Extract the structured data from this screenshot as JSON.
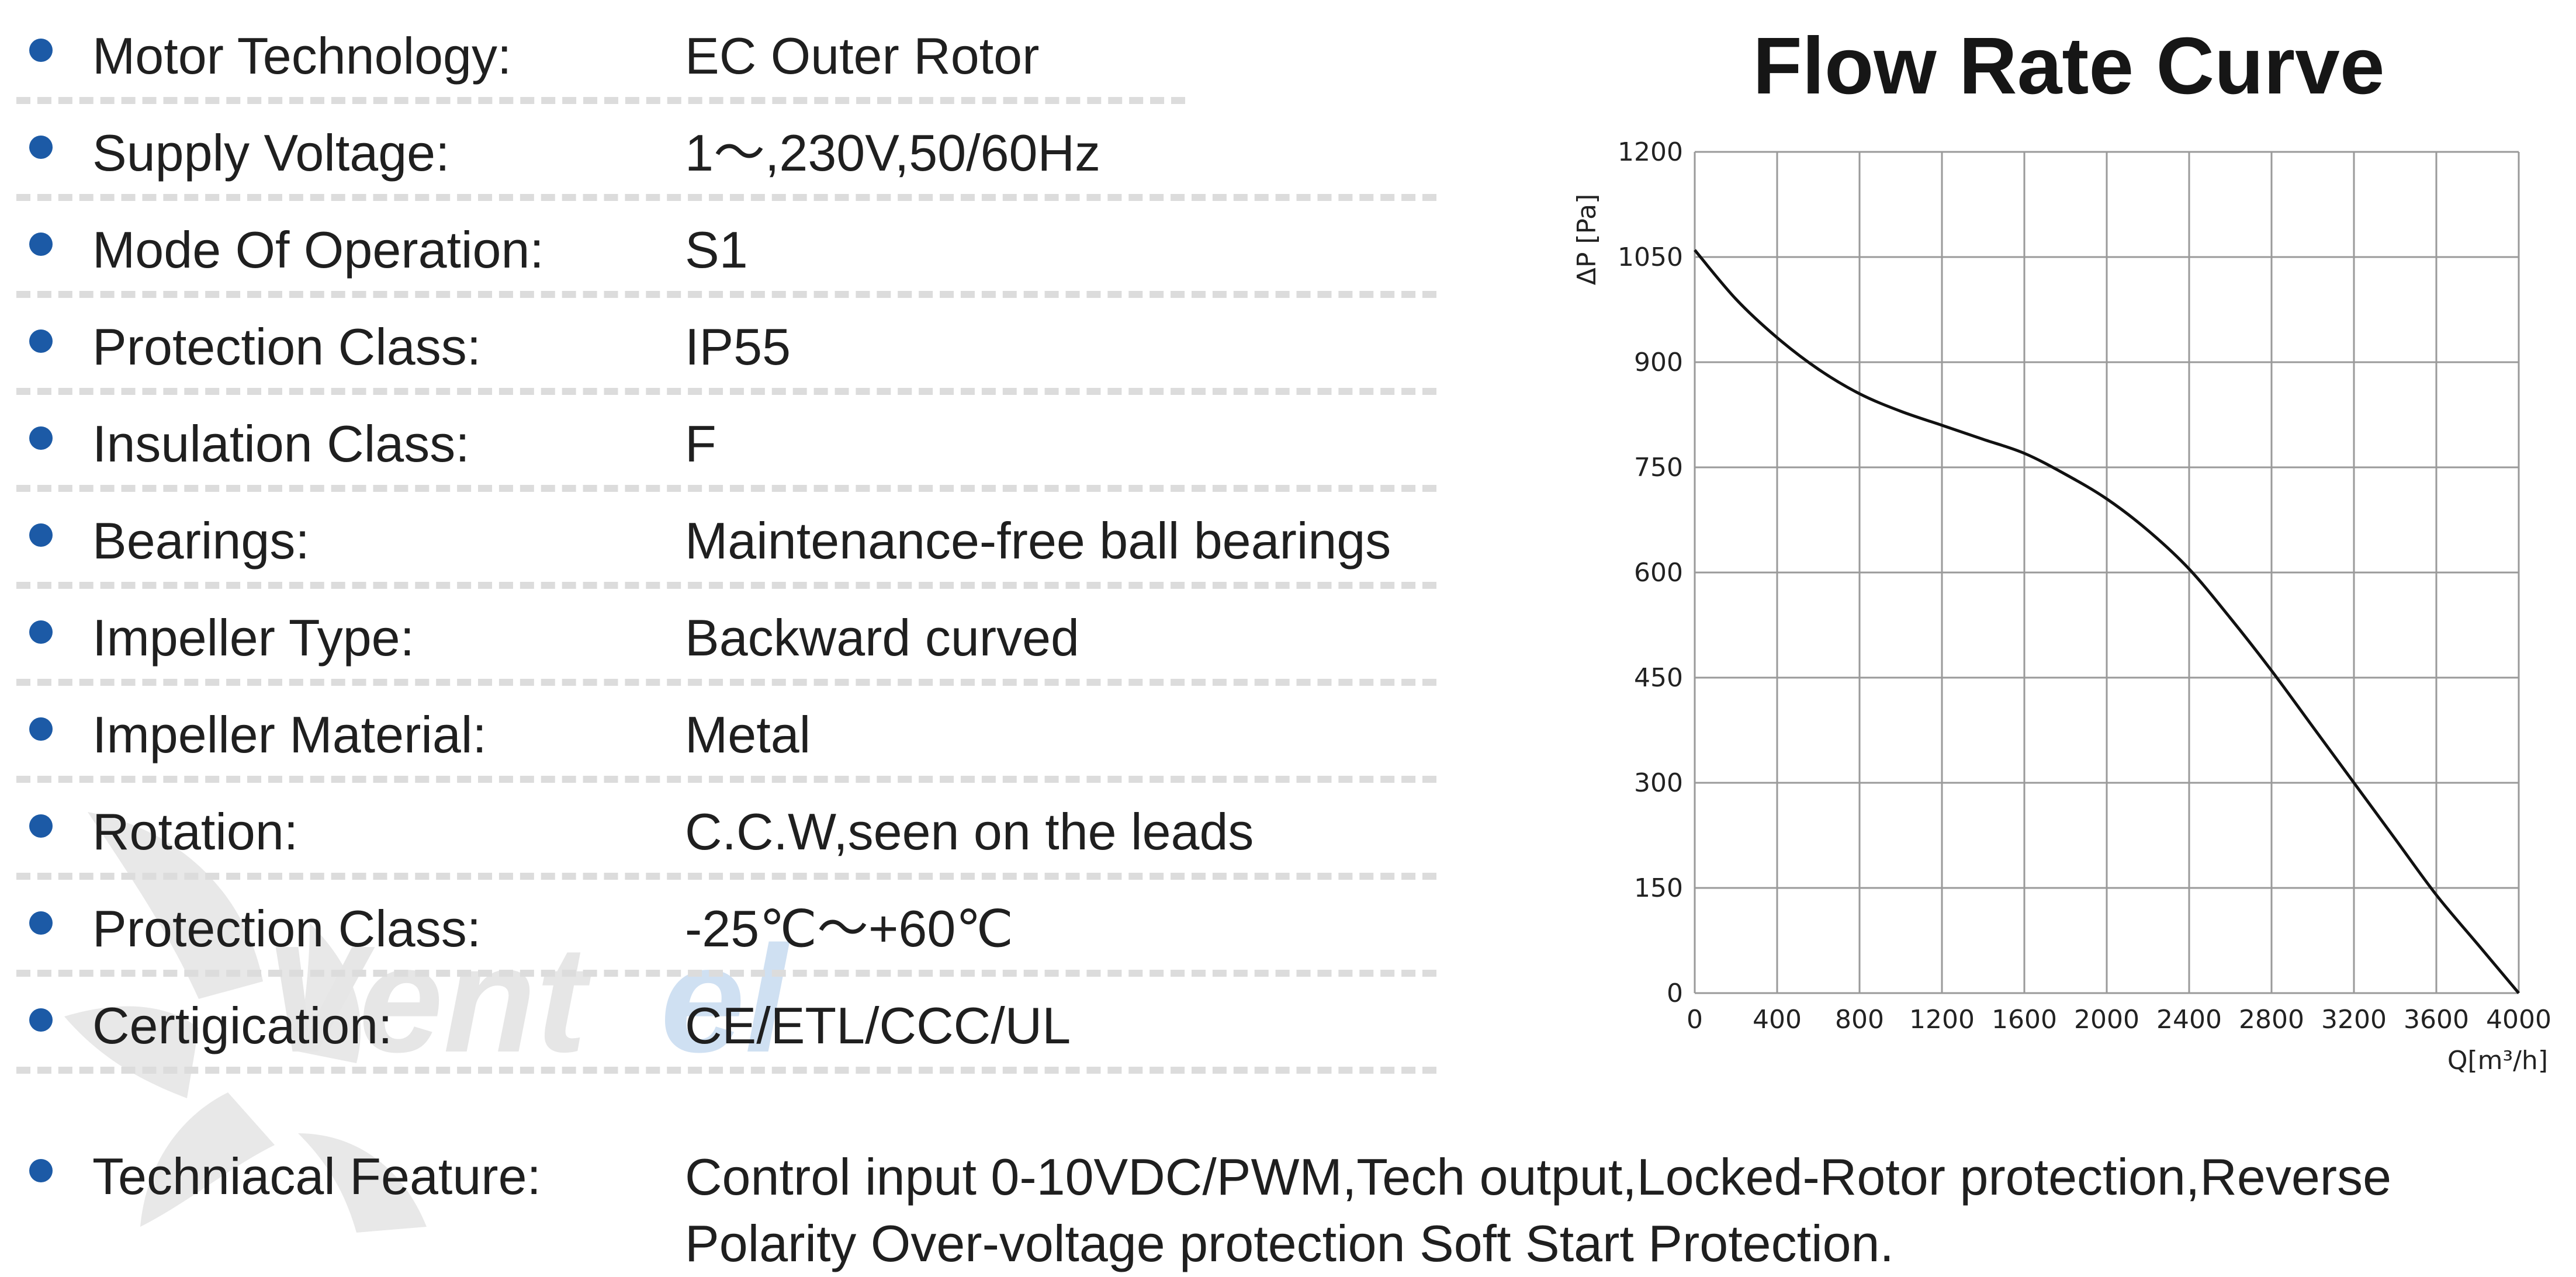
{
  "specs": [
    {
      "label": "Motor Technology:",
      "value": "EC Outer Rotor"
    },
    {
      "label": "Supply Voltage:",
      "value": "1～,230V,50/60Hz"
    },
    {
      "label": "Mode Of Operation:",
      "value": "S1"
    },
    {
      "label": "Protection Class:",
      "value": "IP55"
    },
    {
      "label": "Insulation Class:",
      "value": "F"
    },
    {
      "label": "Bearings:",
      "value": "Maintenance-free ball bearings"
    },
    {
      "label": "Impeller Type:",
      "value": "Backward curved"
    },
    {
      "label": "Impeller Material:",
      "value": "Metal"
    },
    {
      "label": "Rotation:",
      "value": "C.C.W,seen on the leads"
    },
    {
      "label": "Protection Class:",
      "value": "-25℃～+60℃"
    },
    {
      "label": "Certigication:",
      "value": "CE/ETL/CCC/UL"
    }
  ],
  "feature": {
    "label": "Techniacal Feature:",
    "value": "Control input 0-10VDC/PWM,Tech output,Locked-Rotor protection,Reverse Polarity Over-voltage protection Soft Start Protection."
  },
  "watermark_text": "Ventel",
  "colors": {
    "bullet": "#1c5aa6",
    "divider": "#dcdcdc",
    "watermark_grey": "#e6e6e6",
    "watermark_blue": "#cfe0f2"
  },
  "chart_data": {
    "type": "line",
    "title": "Flow Rate Curve",
    "ylabel": "ΔP [Pa]",
    "xlabel": "Q[m³/h]",
    "xlim": [
      0,
      4000
    ],
    "ylim": [
      0,
      1200
    ],
    "x_ticks": [
      0,
      400,
      800,
      1200,
      1600,
      2000,
      2400,
      2800,
      3200,
      3600,
      4000
    ],
    "y_ticks": [
      0,
      150,
      300,
      450,
      600,
      750,
      900,
      1050,
      1200
    ],
    "grid": true,
    "series": [
      {
        "x": [
          0,
          200,
          400,
          600,
          800,
          1000,
          1200,
          1400,
          1600,
          1800,
          2000,
          2200,
          2400,
          2600,
          2800,
          3000,
          3200,
          3400,
          3600,
          3800,
          4000
        ],
        "y": [
          1060,
          990,
          935,
          890,
          855,
          830,
          810,
          790,
          770,
          740,
          705,
          660,
          605,
          535,
          460,
          380,
          300,
          220,
          140,
          70,
          0
        ]
      }
    ]
  }
}
